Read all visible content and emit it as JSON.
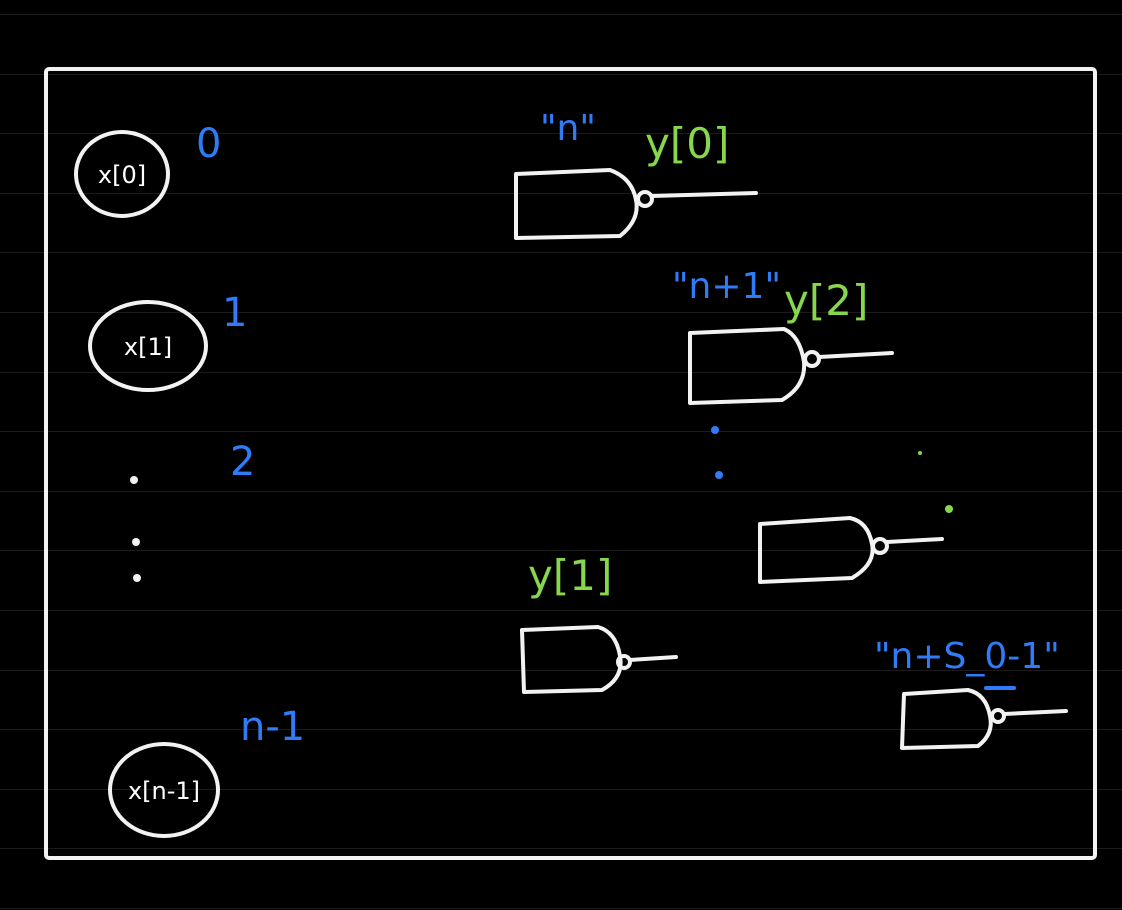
{
  "inputs": [
    {
      "label": "x[0]",
      "index": "0"
    },
    {
      "label": "x[1]",
      "index": "1"
    },
    {
      "label": "",
      "index": "2"
    },
    {
      "label": "x[n-1]",
      "index": "n-1"
    }
  ],
  "gates": [
    {
      "name": "\"n\"",
      "output": "y[0]"
    },
    {
      "name": "\"n+1\"",
      "output": "y[2]"
    },
    {
      "name": "",
      "output": "y[1]"
    },
    {
      "name": "",
      "output": ""
    },
    {
      "name": "\"n+S_0-1\"",
      "output": ""
    }
  ],
  "colors": {
    "background": "#000000",
    "frame": "#f2f2f2",
    "index_text": "#2f7cf6",
    "output_text": "#86d74d",
    "gate_stroke": "#f2f2f2"
  }
}
